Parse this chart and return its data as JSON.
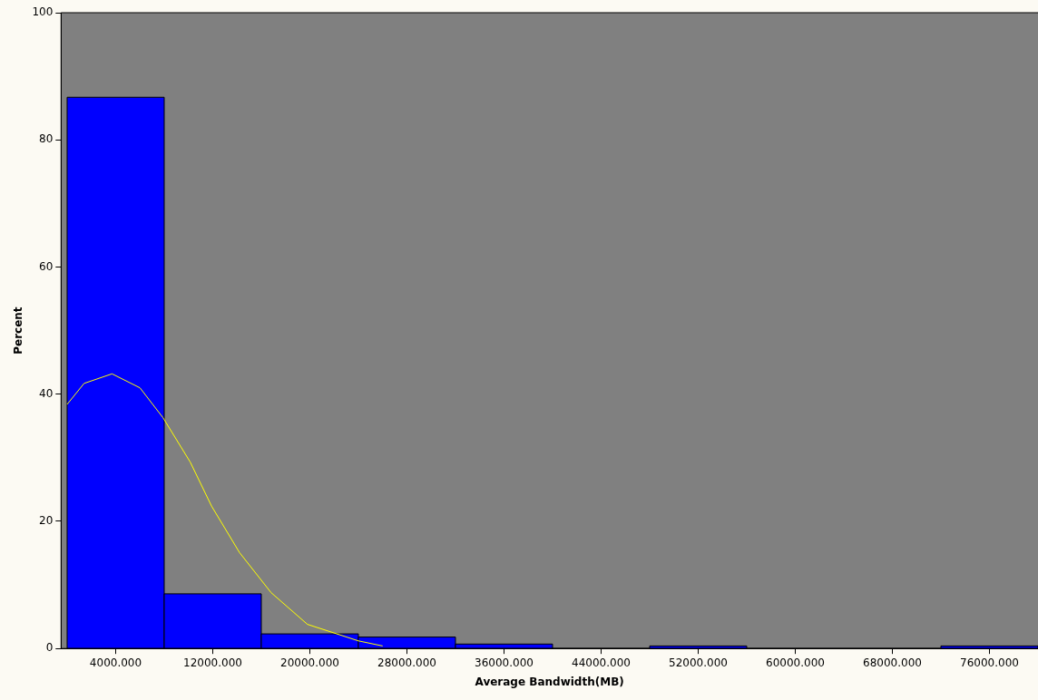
{
  "chart_data": {
    "type": "histogram",
    "xlabel": "Average Bandwidth(MB)",
    "ylabel": "Percent",
    "bins": [
      0,
      8000,
      16000,
      24000,
      32000,
      40000,
      48000,
      56000,
      64000,
      72000,
      80000
    ],
    "values": [
      86.7,
      8.6,
      2.3,
      1.8,
      0.7,
      0,
      0.4,
      0,
      0,
      0.4
    ],
    "color": "#0000ff",
    "series": [
      {
        "type": "line",
        "color": "#ffff00",
        "x": [
          0,
          1400,
          3700,
          6000,
          7900,
          10150,
          11900,
          14200,
          16800,
          19800,
          24000,
          26000
        ],
        "values": [
          38.4,
          41.7,
          43.2,
          41.0,
          36.3,
          29.3,
          22.4,
          15.1,
          8.8,
          3.8,
          1.2,
          0.4
        ]
      }
    ],
    "xlim": [
      -500,
      80000
    ],
    "xticks": [
      {
        "value": 4000,
        "label": "4000.000"
      },
      {
        "value": 12000,
        "label": "12000.000"
      },
      {
        "value": 20000,
        "label": "20000.000"
      },
      {
        "value": 28000,
        "label": "28000.000"
      },
      {
        "value": 36000,
        "label": "36000.000"
      },
      {
        "value": 44000,
        "label": "44000.000"
      },
      {
        "value": 52000,
        "label": "52000.000"
      },
      {
        "value": 60000,
        "label": "60000.000"
      },
      {
        "value": 68000,
        "label": "68000.000"
      },
      {
        "value": 76000,
        "label": "76000.000"
      }
    ],
    "ylim": [
      0,
      100
    ],
    "yticks": [
      0,
      20,
      40,
      60,
      80,
      100
    ],
    "grid": false,
    "legend": false,
    "marker": "none"
  }
}
